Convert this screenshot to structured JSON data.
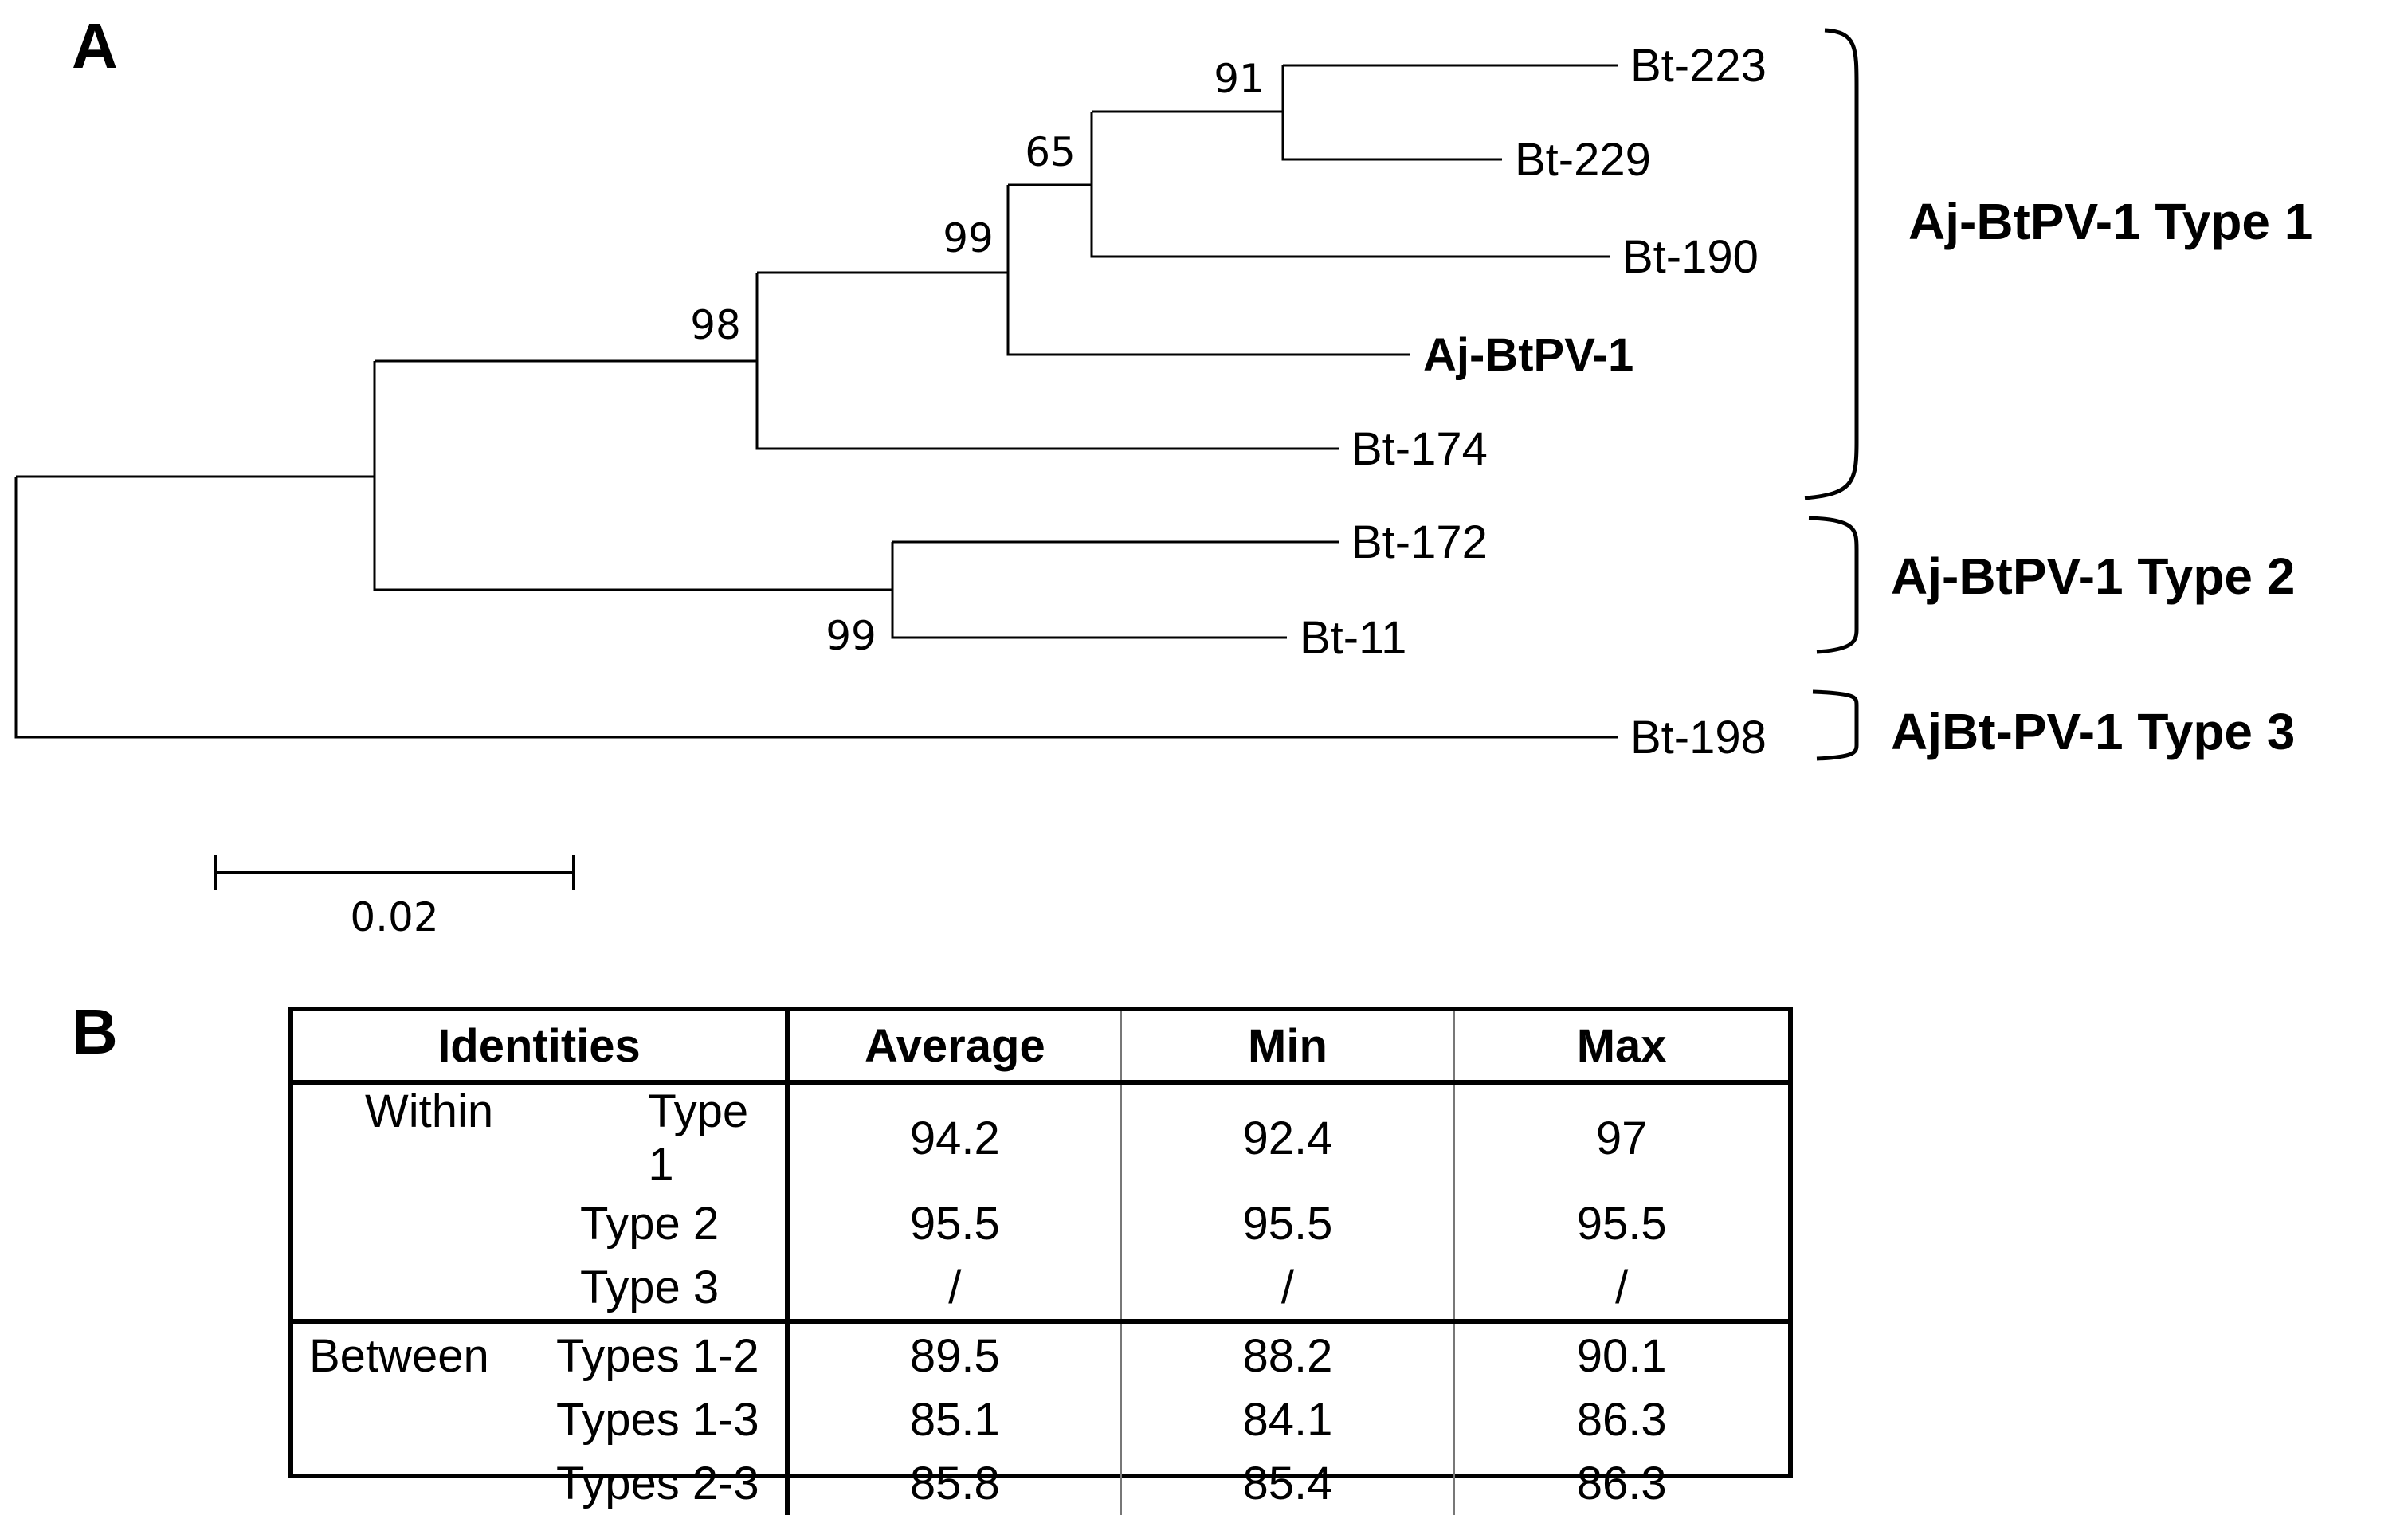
{
  "panel_a": {
    "letter": "A"
  },
  "panel_b": {
    "letter": "B"
  },
  "tree": {
    "leaves": [
      {
        "id": "bt223",
        "label": "Bt-223",
        "bold": false
      },
      {
        "id": "bt229",
        "label": "Bt-229",
        "bold": false
      },
      {
        "id": "bt190",
        "label": "Bt-190",
        "bold": false
      },
      {
        "id": "ajbtpv1",
        "label": "Aj-BtPV-1",
        "bold": true
      },
      {
        "id": "bt174",
        "label": "Bt-174",
        "bold": false
      },
      {
        "id": "bt172",
        "label": "Bt-172",
        "bold": false
      },
      {
        "id": "bt11",
        "label": "Bt-11",
        "bold": false
      },
      {
        "id": "bt198",
        "label": "Bt-198",
        "bold": false
      }
    ],
    "bootstrap_values": [
      "91",
      "65",
      "99",
      "98",
      "99"
    ],
    "clades": [
      {
        "label": "Aj-BtPV-1 Type 1",
        "members": [
          "Bt-223",
          "Bt-229",
          "Bt-190",
          "Aj-BtPV-1",
          "Bt-174"
        ]
      },
      {
        "label": "Aj-BtPV-1 Type 2",
        "members": [
          "Bt-172",
          "Bt-11"
        ]
      },
      {
        "label": "AjBt-PV-1 Type 3",
        "members": [
          "Bt-198"
        ]
      }
    ],
    "scale_bar": {
      "value": "0.02"
    },
    "line_color": "#000000"
  },
  "table": {
    "headers": [
      "Identities",
      "Average",
      "Min",
      "Max"
    ],
    "groups": [
      {
        "label": "Within",
        "rows": [
          {
            "type": "Type 1",
            "average": "94.2",
            "min": "92.4",
            "max": "97"
          },
          {
            "type": "Type 2",
            "average": "95.5",
            "min": "95.5",
            "max": "95.5"
          },
          {
            "type": "Type 3",
            "average": "/",
            "min": "/",
            "max": "/"
          }
        ]
      },
      {
        "label": "Between",
        "rows": [
          {
            "type": "Types 1-2",
            "average": "89.5",
            "min": "88.2",
            "max": "90.1"
          },
          {
            "type": "Types 1-3",
            "average": "85.1",
            "min": "84.1",
            "max": "86.3"
          },
          {
            "type": "Types 2-3",
            "average": "85.8",
            "min": "85.4",
            "max": "86.3"
          }
        ]
      }
    ]
  }
}
